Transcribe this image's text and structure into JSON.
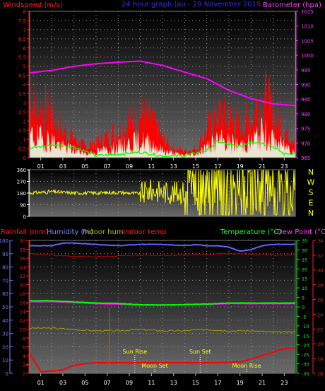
{
  "panels": {
    "wind": {
      "left_title": "Windspeed (m/s)",
      "title": "24 hour graph (au - 29 November 2015",
      "right_title": "Barometer (hpa)",
      "left_ticks": [
        "0",
        "0.5",
        "1",
        "1.5",
        "2",
        "2.5",
        "3",
        "3.5",
        "4",
        "4.5",
        "5",
        "5.5",
        "6",
        "6.5",
        "7",
        "7.5",
        "8"
      ],
      "right_ticks": [
        "965",
        "970",
        "975",
        "980",
        "985",
        "990",
        "995",
        "1000",
        "1005",
        "1010",
        "1015"
      ]
    },
    "direction": {
      "left_ticks": [
        "0",
        "90",
        "180",
        "270",
        "360"
      ],
      "compass": [
        "N",
        "W",
        "S",
        "E",
        "N"
      ]
    },
    "temp": {
      "rain_title": "Rainfall (mm)",
      "humidity_title": "Humidity (%)",
      "indoor_hum_title": "Indoor hum",
      "indoor_temp_title": "Indoor temp",
      "temp_title": "Temperature (°C)",
      "dew_title": "Dew Point (°C)",
      "humidity_ticks": [
        "0",
        "10",
        "20",
        "30",
        "40",
        "50",
        "60",
        "70",
        "80",
        "90",
        "100"
      ],
      "rain_ticks": [
        "0",
        "2",
        "4",
        "6",
        "8",
        "10",
        "12",
        "14",
        "16",
        "18",
        "20",
        "22",
        "24",
        "26",
        "28",
        "30"
      ],
      "temp_ticks": [
        "-35",
        "-30",
        "-25",
        "-20",
        "-15",
        "-10",
        "-5",
        "0",
        "5",
        "10",
        "15",
        "20",
        "25",
        "30",
        "35"
      ],
      "indoor_ticks": [
        "16",
        "18",
        "20",
        "22",
        "24",
        "26",
        "28",
        "30",
        "32",
        "34"
      ],
      "events": [
        {
          "label": "Sun Rise",
          "hour": 9.5,
          "row": "upper"
        },
        {
          "label": "Sun Set",
          "hour": 15.4,
          "row": "upper"
        },
        {
          "label": "Moon Set",
          "hour": 11.3,
          "row": "lower"
        },
        {
          "label": "Moon Rise",
          "hour": 19.6,
          "row": "lower"
        }
      ]
    }
  },
  "chart_data": [
    {
      "type": "line",
      "x_ticks": [
        "01",
        "03",
        "05",
        "07",
        "09",
        "11",
        "13",
        "15",
        "17",
        "19",
        "21",
        "23"
      ],
      "y_left_range": [
        0,
        8
      ],
      "y_right_range": [
        965,
        1015
      ],
      "grid": true,
      "series": [
        {
          "name": "Windspeed (m/s)",
          "color": "#ff0000",
          "style": "bars",
          "x": [
            0,
            1,
            2,
            3,
            4,
            5,
            6,
            7,
            8,
            9,
            10,
            11,
            12,
            13,
            14,
            15,
            16,
            17,
            18,
            19,
            20,
            21,
            22,
            23,
            24
          ],
          "y": [
            3.2,
            2.9,
            2.6,
            1.6,
            1.2,
            0.6,
            0.9,
            1.2,
            1.6,
            2.1,
            2.6,
            2.2,
            1.1,
            0.6,
            0.4,
            0.5,
            1.6,
            2.6,
            2.3,
            1.9,
            2.3,
            3.8,
            2.6,
            1.7,
            1.3
          ]
        },
        {
          "name": "Barometer (hpa)",
          "color": "#ff00ff",
          "x": [
            0,
            2,
            4,
            6,
            8,
            10,
            12,
            14,
            16,
            18,
            20,
            22,
            24
          ],
          "y": [
            994,
            994.8,
            996.2,
            997.1,
            997.6,
            998,
            996.5,
            994.2,
            992,
            988,
            985.2,
            983.4,
            982.8
          ]
        },
        {
          "color": "#00ff00",
          "x": [
            0,
            2,
            4,
            6,
            8,
            10,
            12,
            14,
            16,
            17,
            18,
            19,
            20,
            21,
            22,
            23,
            24
          ],
          "y": [
            0.5,
            0.7,
            0.6,
            0.1,
            0.2,
            0.3,
            0.1,
            0.1,
            0.4,
            0.9,
            0.7,
            0.6,
            0.9,
            0.8,
            0.6,
            0.2,
            0.25
          ]
        }
      ]
    },
    {
      "type": "line",
      "x_ticks": [
        "01",
        "03",
        "05",
        "07",
        "09",
        "11",
        "13",
        "15",
        "17",
        "19",
        "21",
        "23"
      ],
      "y_range": [
        0,
        360
      ],
      "series": [
        {
          "color": "#ffff00",
          "x": [
            0,
            2,
            4,
            6,
            8,
            10,
            11,
            12,
            13,
            14,
            15,
            16,
            17,
            18,
            19,
            20,
            21,
            22,
            23,
            24
          ],
          "y": [
            180,
            190,
            180,
            180,
            185,
            175,
            200,
            190,
            180,
            190,
            170,
            200,
            190,
            180,
            200,
            190,
            180,
            190,
            180,
            180
          ]
        }
      ]
    },
    {
      "type": "line",
      "x_ticks": [
        "01",
        "03",
        "05",
        "07",
        "09",
        "11",
        "13",
        "15",
        "17",
        "19",
        "21",
        "23"
      ],
      "y_ranges": {
        "humidity": [
          0,
          100
        ],
        "rainfall": [
          0,
          30
        ],
        "temperature": [
          -35,
          35
        ],
        "indoor_temp": [
          16,
          34
        ]
      },
      "grid": true,
      "series": [
        {
          "name": "Humidity (%)",
          "color": "#6060ff",
          "x": [
            0,
            2,
            3,
            4,
            6,
            8,
            10,
            12,
            14,
            15,
            16,
            17,
            18,
            19,
            20,
            21,
            22,
            23,
            24
          ],
          "y": [
            96,
            96,
            98,
            98,
            97,
            96,
            97,
            97,
            96,
            97,
            96,
            96,
            95,
            92,
            93,
            96,
            97,
            97,
            97
          ]
        },
        {
          "name": "Temperature (°C)",
          "color": "#00ff00",
          "x": [
            0,
            2,
            4,
            6,
            8,
            10,
            12,
            14,
            16,
            18,
            20,
            22,
            24
          ],
          "y": [
            3.2,
            3.2,
            2.6,
            2.0,
            1.8,
            1.1,
            1.0,
            1.2,
            1.5,
            2.0,
            2.0,
            2.0,
            2.0
          ]
        },
        {
          "name": "Dew Point (°C)",
          "color": "#ff00ff",
          "x": [
            0,
            2,
            4,
            6,
            8,
            10,
            12,
            14,
            16,
            18,
            20,
            22,
            24
          ],
          "y": [
            2.6,
            2.6,
            2.2,
            1.6,
            1.3,
            1.0,
            0.8,
            1.0,
            1.2,
            1.7,
            1.6,
            1.6,
            1.6
          ]
        },
        {
          "name": "Indoor temp",
          "color": "#c00000",
          "x": [
            0,
            2,
            4,
            6,
            8,
            10,
            12,
            14,
            16,
            18,
            20,
            22,
            24
          ],
          "y": [
            32.2,
            32.0,
            31.8,
            31.8,
            31.9,
            32.0,
            32.0,
            32.0,
            32.1,
            32.2,
            32.1,
            32.0,
            32.0
          ]
        },
        {
          "name": "Indoor hum",
          "color": "#a0a000",
          "x": [
            0,
            2,
            4,
            6,
            8,
            10,
            12,
            14,
            16,
            18,
            20,
            22,
            24
          ],
          "y": [
            34,
            34,
            33,
            32,
            32,
            33,
            32,
            32,
            33,
            32,
            32,
            31,
            31
          ]
        },
        {
          "name": "Rainfall (mm)",
          "color": "#ff0000",
          "x": [
            0,
            1,
            2,
            3,
            4,
            5,
            6,
            8,
            12,
            16,
            18,
            19,
            20,
            21,
            22,
            23,
            24
          ],
          "y": [
            4.5,
            0.4,
            0.5,
            0.8,
            1.8,
            2.2,
            2.4,
            2.4,
            2.4,
            2.4,
            2.5,
            2.6,
            3.2,
            4.0,
            4.8,
            5.6,
            5.8
          ]
        }
      ]
    }
  ]
}
